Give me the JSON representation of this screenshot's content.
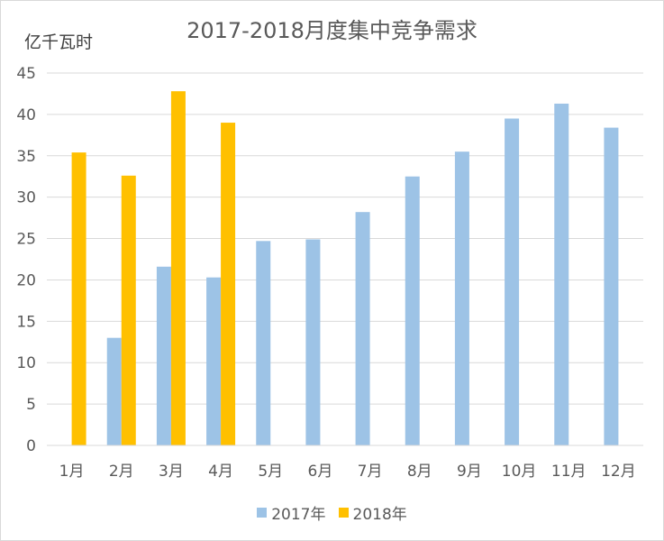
{
  "chart_data": {
    "type": "bar",
    "title": "2017-2018月度集中竞争需求",
    "ylabel": "亿千瓦时",
    "xlabel": "",
    "categories": [
      "1月",
      "2月",
      "3月",
      "4月",
      "5月",
      "6月",
      "7月",
      "8月",
      "9月",
      "10月",
      "11月",
      "12月"
    ],
    "series": [
      {
        "name": "2017年",
        "color": "#9dc3e6",
        "values": [
          null,
          13.0,
          21.6,
          20.3,
          24.7,
          24.9,
          28.2,
          32.5,
          35.5,
          39.5,
          41.3,
          38.4
        ]
      },
      {
        "name": "2018年",
        "color": "#ffc000",
        "values": [
          35.4,
          32.6,
          42.8,
          39.0,
          null,
          null,
          null,
          null,
          null,
          null,
          null,
          null
        ]
      }
    ],
    "ylim": [
      0,
      45
    ],
    "yticks": [
      0,
      5,
      10,
      15,
      20,
      25,
      30,
      35,
      40,
      45
    ],
    "grid": true,
    "legend_position": "bottom"
  }
}
